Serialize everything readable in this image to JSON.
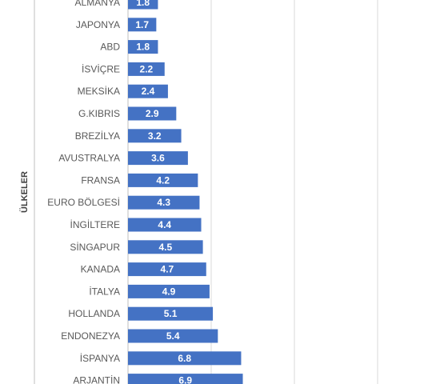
{
  "chart_data": {
    "type": "bar",
    "orientation": "horizontal",
    "ylabel": "ÜLKELER",
    "categories": [
      "ALMANYA",
      "JAPONYA",
      "ABD",
      "İSVİÇRE",
      "MEKSİKA",
      "G.KIBRIS",
      "BREZİLYA",
      "AVUSTRALYA",
      "FRANSA",
      "EURO BÖLGESİ",
      "İNGİLTERE",
      "SİNGAPUR",
      "KANADA",
      "İTALYA",
      "HOLLANDA",
      "ENDONEZYA",
      "İSPANYA",
      "ARJANTİN"
    ],
    "values": [
      1.8,
      1.7,
      1.8,
      2.2,
      2.4,
      2.9,
      3.2,
      3.6,
      4.2,
      4.3,
      4.4,
      4.5,
      4.7,
      4.9,
      5.1,
      5.4,
      6.8,
      6.9
    ],
    "value_labels": [
      "1.8",
      "1.7",
      "1.8",
      "2.2",
      "2.4",
      "2.9",
      "3.2",
      "3.6",
      "4.2",
      "4.3",
      "4.4",
      "4.5",
      "4.7",
      "4.9",
      "5.1",
      "5.4",
      "6.8",
      "6.9"
    ],
    "xlim": [
      0,
      20
    ],
    "gridlines": true,
    "legend": "none",
    "bar_color": "#4472C4",
    "grid_color": "#D9D9D9",
    "label_color": "#595959"
  }
}
